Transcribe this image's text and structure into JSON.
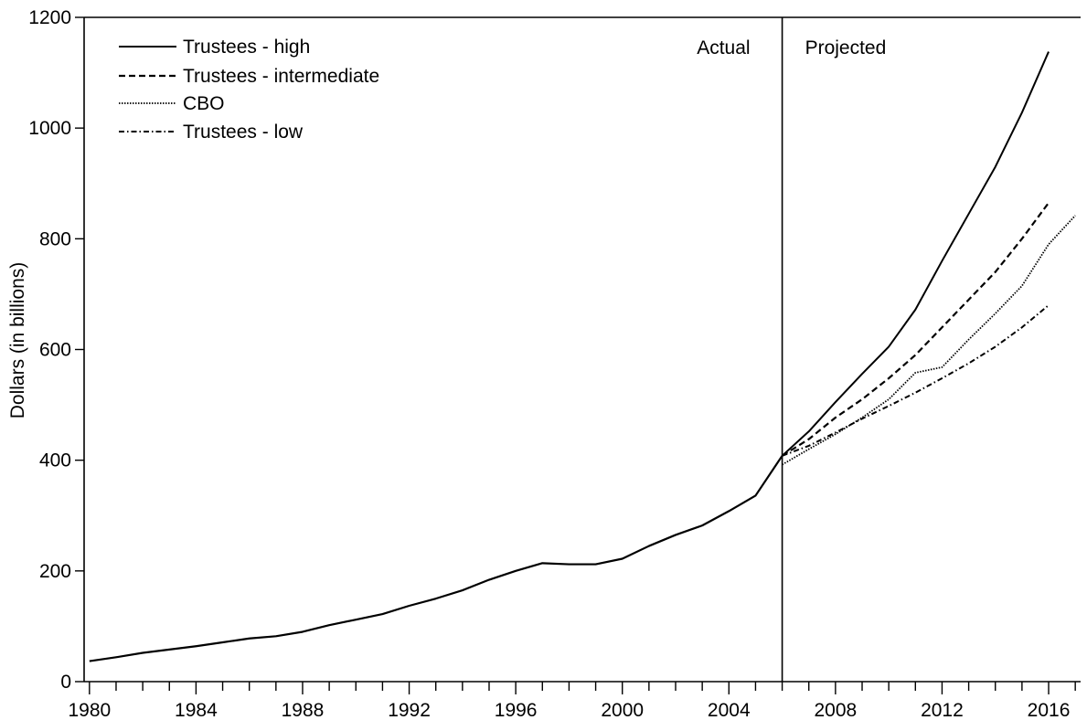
{
  "chart_data": {
    "type": "line",
    "title": "",
    "xlabel": "",
    "ylabel": "Dollars (in billions)",
    "xlim": [
      1979.8,
      2017.2
    ],
    "ylim": [
      0,
      1200
    ],
    "xticks": [
      1980,
      1984,
      1988,
      1992,
      1996,
      2000,
      2004,
      2008,
      2012,
      2016
    ],
    "yticks": [
      0,
      200,
      400,
      600,
      800,
      1000,
      1200
    ],
    "grid": false,
    "legend_position": "top-left",
    "divider_x": 2006,
    "annotations": [
      "Actual",
      "Projected"
    ],
    "historical": {
      "x": [
        1980,
        1981,
        1982,
        1983,
        1984,
        1985,
        1986,
        1987,
        1988,
        1989,
        1990,
        1991,
        1992,
        1993,
        1994,
        1995,
        1996,
        1997,
        1998,
        1999,
        2000,
        2001,
        2002,
        2003,
        2004,
        2005,
        2006
      ],
      "y": [
        37,
        44,
        52,
        58,
        64,
        71,
        78,
        82,
        90,
        102,
        112,
        122,
        137,
        150,
        165,
        184,
        200,
        214,
        212,
        212,
        222,
        245,
        265,
        282,
        308,
        336,
        408
      ]
    },
    "series": [
      {
        "name": "Trustees - high",
        "dash": "solid",
        "x": [
          2006,
          2007,
          2008,
          2009,
          2010,
          2011,
          2012,
          2013,
          2014,
          2015,
          2016
        ],
        "y": [
          408,
          452,
          505,
          556,
          605,
          672,
          760,
          845,
          930,
          1028,
          1138
        ]
      },
      {
        "name": "Trustees - intermediate",
        "dash": "dashed",
        "x": [
          2006,
          2007,
          2008,
          2009,
          2010,
          2011,
          2012,
          2013,
          2014,
          2015,
          2016
        ],
        "y": [
          408,
          438,
          477,
          510,
          548,
          590,
          640,
          690,
          740,
          800,
          865
        ]
      },
      {
        "name": "CBO",
        "dash": "dotted",
        "x": [
          2006,
          2007,
          2008,
          2009,
          2010,
          2011,
          2012,
          2013,
          2014,
          2015,
          2016,
          2017
        ],
        "y": [
          392,
          420,
          447,
          477,
          510,
          558,
          568,
          618,
          665,
          715,
          790,
          842
        ]
      },
      {
        "name": "Trustees - low",
        "dash": "dashdot",
        "x": [
          2006,
          2007,
          2008,
          2009,
          2010,
          2011,
          2012,
          2013,
          2014,
          2015,
          2016
        ],
        "y": [
          408,
          426,
          450,
          475,
          498,
          522,
          548,
          575,
          605,
          640,
          680
        ]
      }
    ]
  }
}
